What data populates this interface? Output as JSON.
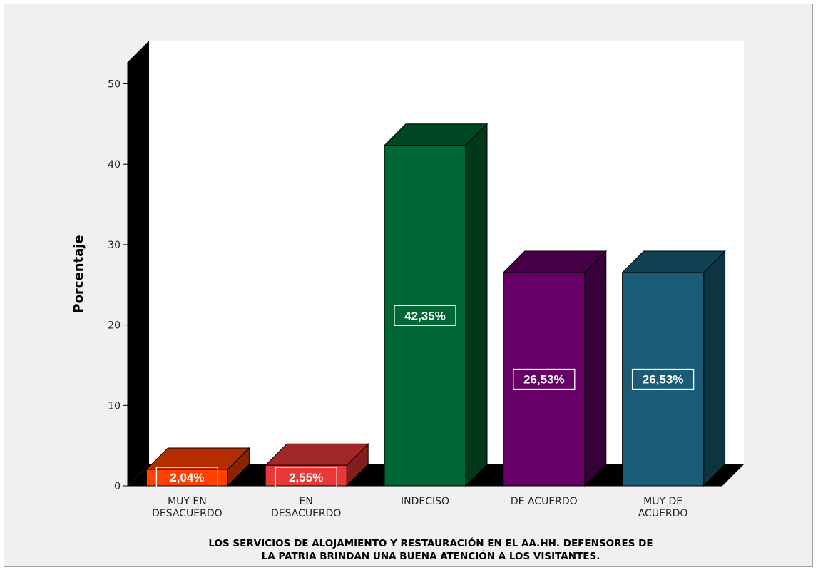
{
  "chart_data": {
    "type": "bar",
    "categories": [
      [
        "MUY EN",
        "DESACUERDO"
      ],
      [
        "EN",
        "DESACUERDO"
      ],
      [
        "INDECISO"
      ],
      [
        "DE ACUERDO"
      ],
      [
        "MUY DE",
        "ACUERDO"
      ]
    ],
    "values": [
      2.04,
      2.55,
      42.35,
      26.53,
      26.53
    ],
    "value_labels": [
      "2,04%",
      "2,55%",
      "42,35%",
      "26,53%",
      "26,53%"
    ],
    "colors": [
      "#ff4000",
      "#e83838",
      "#006633",
      "#660066",
      "#1a5c78"
    ],
    "ylabel": "Porcentaje",
    "y_ticks": [
      "0",
      "10",
      "20",
      "30",
      "40",
      "50"
    ],
    "ylim": [
      0,
      50
    ],
    "title_lines": [
      "LOS SERVICIOS DE ALOJAMIENTO Y RESTAURACIÓN EN EL AA.HH. DEFENSORES DE",
      "LA PATRIA BRINDAN UNA BUENA ATENCIÓN A LOS VISITANTES."
    ],
    "grid": false,
    "style": "3d"
  }
}
